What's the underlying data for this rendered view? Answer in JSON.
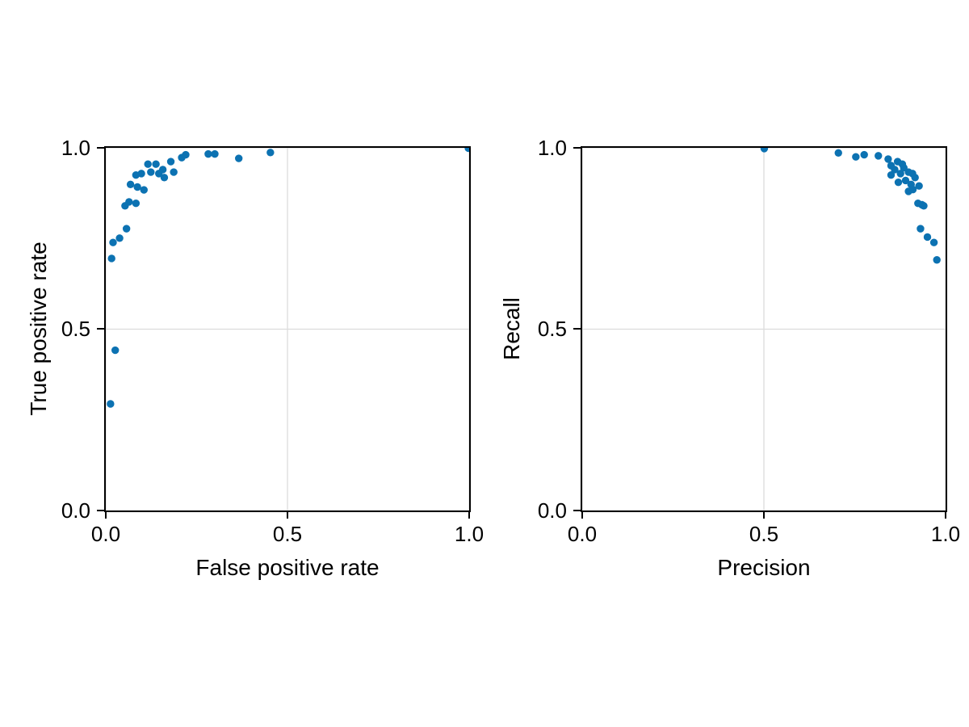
{
  "figure": {
    "background": "#ffffff",
    "marker_color": "#0c72b2",
    "grid_color": "#dcdcdc",
    "axis_color": "#000000"
  },
  "chart_data": [
    {
      "id": "roc-curve",
      "type": "scatter",
      "title": "",
      "xlabel": "False positive rate",
      "ylabel": "True positive rate",
      "xlim": [
        0.0,
        1.0
      ],
      "ylim": [
        0.0,
        1.0
      ],
      "x_tick_values": [
        0.0,
        0.5,
        1.0
      ],
      "y_tick_values": [
        0.0,
        0.5,
        1.0
      ],
      "x_tick_labels": [
        "0.0",
        "0.5",
        "1.0"
      ],
      "y_tick_labels": [
        "0.0",
        "0.5",
        "1.0"
      ],
      "grid": true,
      "legend": null,
      "marker_radius": 4.7,
      "points": [
        [
          0.013,
          0.294
        ],
        [
          0.026,
          0.442
        ],
        [
          0.016,
          0.695
        ],
        [
          0.02,
          0.739
        ],
        [
          0.038,
          0.751
        ],
        [
          0.057,
          0.777
        ],
        [
          0.053,
          0.84
        ],
        [
          0.064,
          0.851
        ],
        [
          0.083,
          0.847
        ],
        [
          0.068,
          0.899
        ],
        [
          0.087,
          0.892
        ],
        [
          0.083,
          0.925
        ],
        [
          0.098,
          0.929
        ],
        [
          0.105,
          0.884
        ],
        [
          0.116,
          0.955
        ],
        [
          0.124,
          0.933
        ],
        [
          0.138,
          0.955
        ],
        [
          0.146,
          0.929
        ],
        [
          0.157,
          0.94
        ],
        [
          0.161,
          0.918
        ],
        [
          0.179,
          0.962
        ],
        [
          0.187,
          0.933
        ],
        [
          0.209,
          0.973
        ],
        [
          0.22,
          0.981
        ],
        [
          0.282,
          0.983
        ],
        [
          0.3,
          0.983
        ],
        [
          0.366,
          0.971
        ],
        [
          0.453,
          0.987
        ],
        [
          0.998,
          0.999
        ]
      ]
    },
    {
      "id": "precision-recall",
      "type": "scatter",
      "title": "",
      "xlabel": "Precision",
      "ylabel": "Recall",
      "xlim": [
        0.0,
        1.0
      ],
      "ylim": [
        0.0,
        1.0
      ],
      "x_tick_values": [
        0.0,
        0.5,
        1.0
      ],
      "y_tick_values": [
        0.0,
        0.5,
        1.0
      ],
      "x_tick_labels": [
        "0.0",
        "0.5",
        "1.0"
      ],
      "y_tick_labels": [
        "0.0",
        "0.5",
        "1.0"
      ],
      "grid": true,
      "legend": null,
      "marker_radius": 4.7,
      "points": [
        [
          0.501,
          0.998
        ],
        [
          0.705,
          0.986
        ],
        [
          0.753,
          0.975
        ],
        [
          0.776,
          0.981
        ],
        [
          0.815,
          0.978
        ],
        [
          0.842,
          0.969
        ],
        [
          0.85,
          0.951
        ],
        [
          0.868,
          0.962
        ],
        [
          0.881,
          0.955
        ],
        [
          0.885,
          0.945
        ],
        [
          0.86,
          0.94
        ],
        [
          0.85,
          0.925
        ],
        [
          0.876,
          0.929
        ],
        [
          0.898,
          0.933
        ],
        [
          0.909,
          0.929
        ],
        [
          0.89,
          0.91
        ],
        [
          0.87,
          0.905
        ],
        [
          0.905,
          0.899
        ],
        [
          0.916,
          0.918
        ],
        [
          0.927,
          0.895
        ],
        [
          0.898,
          0.88
        ],
        [
          0.91,
          0.885
        ],
        [
          0.924,
          0.847
        ],
        [
          0.935,
          0.843
        ],
        [
          0.94,
          0.84
        ],
        [
          0.931,
          0.777
        ],
        [
          0.95,
          0.754
        ],
        [
          0.968,
          0.739
        ],
        [
          0.976,
          0.691
        ]
      ]
    }
  ]
}
